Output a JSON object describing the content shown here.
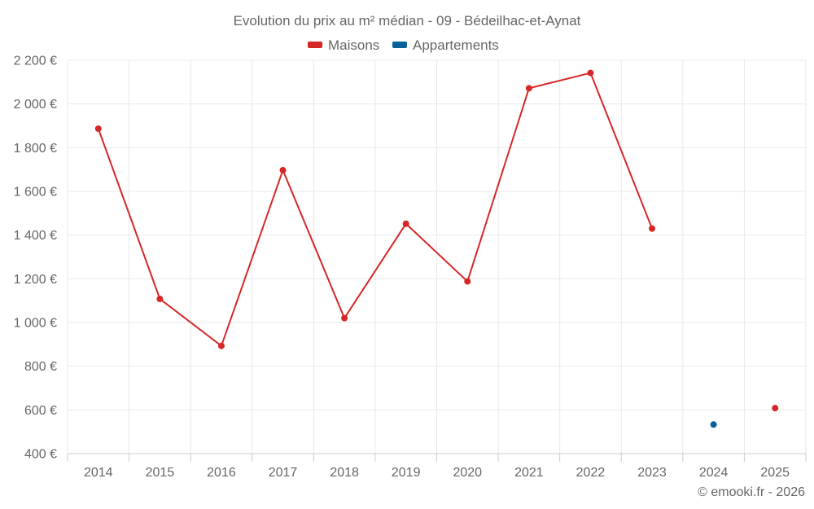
{
  "chart_data": {
    "type": "line",
    "title": "Evolution du prix au m² médian - 09 - Bédeilhac-et-Aynat",
    "categories": [
      "2014",
      "2015",
      "2016",
      "2017",
      "2018",
      "2019",
      "2020",
      "2021",
      "2022",
      "2023",
      "2024",
      "2025"
    ],
    "series": [
      {
        "name": "Maisons",
        "color": "#d62728",
        "values": [
          1887,
          1108,
          893,
          1697,
          1020,
          1452,
          1188,
          2072,
          2142,
          1430,
          null,
          608
        ]
      },
      {
        "name": "Appartements",
        "color": "#08609a",
        "values": [
          null,
          null,
          null,
          null,
          null,
          null,
          null,
          null,
          null,
          null,
          533,
          null
        ]
      }
    ],
    "ylim": [
      400,
      2200
    ],
    "yticks": [
      400,
      600,
      800,
      1000,
      1200,
      1400,
      1600,
      1800,
      2000,
      2200
    ],
    "ytick_labels": [
      "400 €",
      "600 €",
      "800 €",
      "1 000 €",
      "1 200 €",
      "1 400 €",
      "1 600 €",
      "1 800 €",
      "2 000 €",
      "2 200 €"
    ],
    "grid": true,
    "legend_position": "top-center",
    "credit": "© emooki.fr - 2026"
  }
}
